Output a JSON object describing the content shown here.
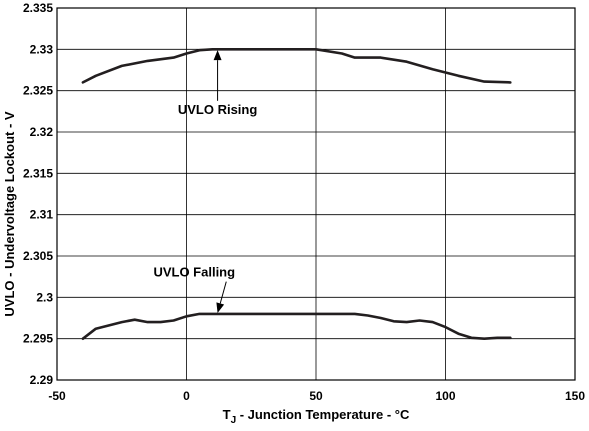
{
  "chart_data": {
    "type": "line",
    "xlabel_prefix": "T",
    "xlabel_sub": "J",
    "xlabel_rest": " - Junction Temperature - °C",
    "ylabel": "UVLO - Undervoltage Lockout - V",
    "xlim": [
      -50,
      150
    ],
    "ylim": [
      2.29,
      2.335
    ],
    "xticks": [
      -50,
      0,
      50,
      100,
      150
    ],
    "xtick_labels": [
      "-50",
      "0",
      "50",
      "100",
      "150"
    ],
    "yticks": [
      2.29,
      2.295,
      2.3,
      2.305,
      2.31,
      2.315,
      2.32,
      2.325,
      2.33,
      2.335
    ],
    "ytick_labels": [
      "2.29",
      "2.295",
      "2.3",
      "2.305",
      "2.31",
      "2.315",
      "2.32",
      "2.325",
      "2.33",
      "2.335"
    ],
    "grid": true,
    "series": [
      {
        "name": "UVLO Rising",
        "x": [
          -40,
          -35,
          -25,
          -15,
          -5,
          0,
          5,
          10,
          20,
          30,
          40,
          50,
          60,
          65,
          75,
          85,
          95,
          105,
          115,
          125
        ],
        "y": [
          2.326,
          2.3268,
          2.328,
          2.3286,
          2.329,
          2.3295,
          2.3299,
          2.33,
          2.33,
          2.33,
          2.33,
          2.33,
          2.3295,
          2.329,
          2.329,
          2.3285,
          2.3276,
          2.3268,
          2.3261,
          2.326
        ]
      },
      {
        "name": "UVLO Falling",
        "x": [
          -40,
          -35,
          -25,
          -20,
          -15,
          -10,
          -5,
          0,
          5,
          10,
          20,
          30,
          40,
          50,
          60,
          65,
          70,
          75,
          80,
          85,
          90,
          95,
          100,
          105,
          110,
          115,
          120,
          125
        ],
        "y": [
          2.295,
          2.2962,
          2.297,
          2.2973,
          2.297,
          2.297,
          2.2972,
          2.2977,
          2.298,
          2.298,
          2.298,
          2.298,
          2.298,
          2.298,
          2.298,
          2.298,
          2.2978,
          2.2975,
          2.2971,
          2.297,
          2.2972,
          2.297,
          2.2964,
          2.2956,
          2.2951,
          2.295,
          2.2951,
          2.2951
        ]
      }
    ],
    "annotations": [
      {
        "text": "UVLO Rising",
        "text_x": 12,
        "text_y": 2.3222,
        "arrow_x": 12,
        "arrow_y": 2.3299
      },
      {
        "text": "UVLO Falling",
        "text_x": 3,
        "text_y": 2.3025,
        "arrow_x": 12,
        "arrow_y": 2.2981
      }
    ]
  }
}
